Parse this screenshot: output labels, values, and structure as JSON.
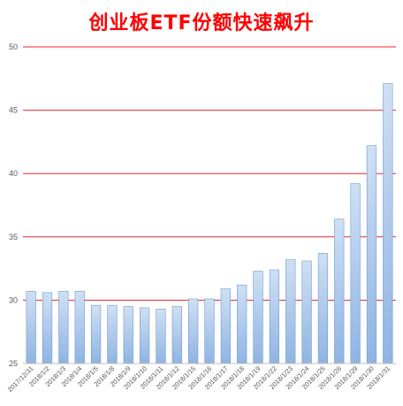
{
  "chart_data": {
    "type": "bar",
    "title": "创业板ETF份额快速飙升",
    "xlabel": "",
    "ylabel": "",
    "ylim": [
      25,
      50
    ],
    "yticks": [
      25,
      30,
      35,
      40,
      45,
      50
    ],
    "grid": true,
    "colors": {
      "title": "#ff0000",
      "gridline": "#e8262b",
      "bar_fill_top": "#cfe0f3",
      "bar_fill_bottom": "#8fb4e3",
      "bar_stroke": "#6f9bd1"
    },
    "categories": [
      "2017/12/31",
      "2018/1/2",
      "2018/1/3",
      "2018/1/4",
      "2018/1/5",
      "2018/1/8",
      "2018/1/9",
      "2018/1/10",
      "2018/1/11",
      "2018/1/12",
      "2018/1/15",
      "2018/1/16",
      "2018/1/17",
      "2018/1/18",
      "2018/1/19",
      "2018/1/22",
      "2018/1/23",
      "2018/1/24",
      "2018/1/25",
      "2018/1/26",
      "2018/1/29",
      "2018/1/30",
      "2018/1/31"
    ],
    "values": [
      30.7,
      30.6,
      30.7,
      30.7,
      29.6,
      29.6,
      29.5,
      29.4,
      29.3,
      29.5,
      30.1,
      30.1,
      30.9,
      31.2,
      32.3,
      32.4,
      33.2,
      33.1,
      33.7,
      36.4,
      39.2,
      42.2,
      47.1
    ]
  }
}
